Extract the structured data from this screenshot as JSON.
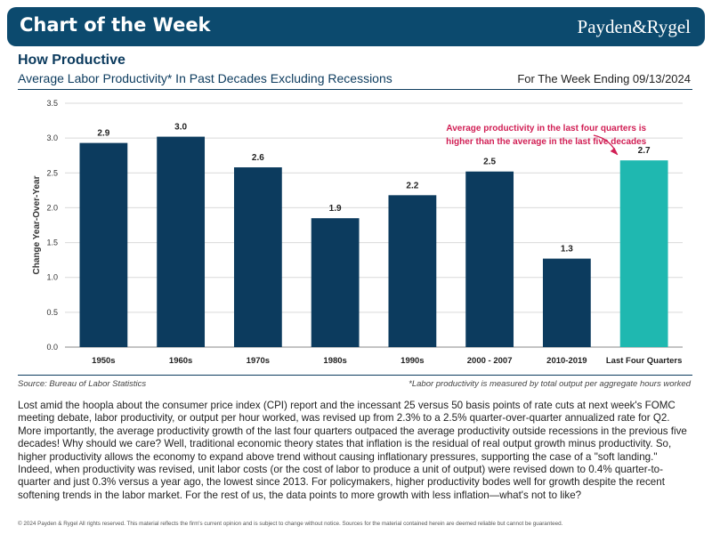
{
  "header": {
    "title": "Chart of the Week",
    "brand": "Payden&Rygel"
  },
  "title": "How Productive",
  "subtitle": "Average Labor Productivity* In Past Decades Excluding Recessions",
  "week_ending": "For The Week Ending 09/13/2024",
  "chart_data": {
    "type": "bar",
    "categories": [
      "1950s",
      "1960s",
      "1970s",
      "1980s",
      "1990s",
      "2000 - 2007",
      "2010-2019",
      "Last Four Quarters"
    ],
    "values": [
      2.93,
      3.02,
      2.58,
      1.85,
      2.18,
      2.52,
      1.27,
      2.68
    ],
    "data_labels": [
      "2.9",
      "3.0",
      "2.6",
      "1.9",
      "2.2",
      "2.5",
      "1.3",
      "2.7"
    ],
    "ylabel": "Change Year-Over-Year",
    "xlabel": "",
    "ylim": [
      0,
      3.5
    ],
    "yticks": [
      "0.0",
      "0.5",
      "1.0",
      "1.5",
      "2.0",
      "2.5",
      "3.0",
      "3.5"
    ],
    "grid": true,
    "colors": {
      "bar": "#0c3b5e",
      "highlight": "#1fb8b0",
      "annotation": "#d11e54",
      "grid": "#d9d9d9"
    },
    "annotation": [
      "Average productivity in the last four quarters is",
      "higher than the average in the last five decades"
    ]
  },
  "source": "Source: Bureau of Labor Statistics",
  "note": "*Labor productivity is measured by total output per aggregate hours worked",
  "body": "Lost amid the hoopla about the consumer price index (CPI) report and the incessant 25 versus 50 basis points of rate cuts at next week's FOMC meeting debate, labor productivity, or output per hour worked, was revised up from 2.3% to a 2.5% quarter-over-quarter annualized rate for Q2. More importantly, the average productivity growth of the last four quarters outpaced the average productivity outside recessions in the previous five decades! Why should we care? Well, traditional economic theory states that inflation is the residual of real output growth minus productivity. So, higher productivity allows the economy to expand above trend without causing inflationary pressures, supporting the case of a \"soft landing.\" Indeed, when productivity was revised, unit labor costs (or the cost of labor to produce a unit of output) were revised down to 0.4% quarter-to-quarter and just 0.3% versus a year ago, the lowest since 2013. For policymakers, higher productivity bodes well for growth despite the recent softening trends in the labor market. For the rest of us, the data points to more growth with less inflation—what's not to like?",
  "footer": "© 2024 Payden & Rygel All rights reserved. This material reflects the firm's current opinion and is subject to change without notice. Sources for the material contained herein are deemed reliable but cannot be guaranteed."
}
